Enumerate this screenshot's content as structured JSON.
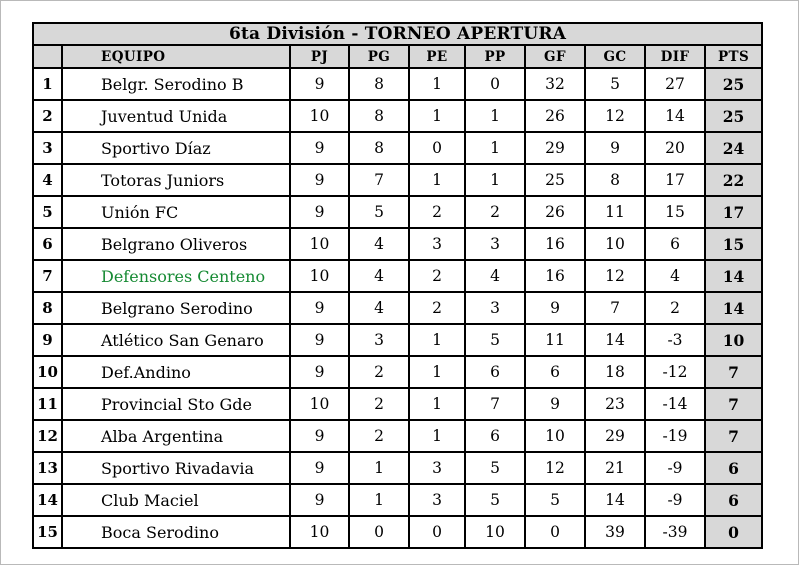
{
  "title": "6ta División - TORNEO APERTURA",
  "colors": {
    "table_gray": "#d8d8d8",
    "highlight_green": "#168a33",
    "border_black": "#000000",
    "page_border": "#b9b9b9"
  },
  "columns": [
    "",
    "EQUIPO",
    "PJ",
    "PG",
    "PE",
    "PP",
    "GF",
    "GC",
    "DIF",
    "PTS"
  ],
  "rows": [
    {
      "pos": "1",
      "team": "Belgr. Serodino B",
      "pj": "9",
      "pg": "8",
      "pe": "1",
      "pp": "0",
      "gf": "32",
      "gc": "5",
      "dif": "27",
      "pts": "25",
      "highlight": false
    },
    {
      "pos": "2",
      "team": "Juventud Unida",
      "pj": "10",
      "pg": "8",
      "pe": "1",
      "pp": "1",
      "gf": "26",
      "gc": "12",
      "dif": "14",
      "pts": "25",
      "highlight": false
    },
    {
      "pos": "3",
      "team": "Sportivo Díaz",
      "pj": "9",
      "pg": "8",
      "pe": "0",
      "pp": "1",
      "gf": "29",
      "gc": "9",
      "dif": "20",
      "pts": "24",
      "highlight": false
    },
    {
      "pos": "4",
      "team": "Totoras Juniors",
      "pj": "9",
      "pg": "7",
      "pe": "1",
      "pp": "1",
      "gf": "25",
      "gc": "8",
      "dif": "17",
      "pts": "22",
      "highlight": false
    },
    {
      "pos": "5",
      "team": "Unión FC",
      "pj": "9",
      "pg": "5",
      "pe": "2",
      "pp": "2",
      "gf": "26",
      "gc": "11",
      "dif": "15",
      "pts": "17",
      "highlight": false
    },
    {
      "pos": "6",
      "team": "Belgrano Oliveros",
      "pj": "10",
      "pg": "4",
      "pe": "3",
      "pp": "3",
      "gf": "16",
      "gc": "10",
      "dif": "6",
      "pts": "15",
      "highlight": false
    },
    {
      "pos": "7",
      "team": "Defensores Centeno",
      "pj": "10",
      "pg": "4",
      "pe": "2",
      "pp": "4",
      "gf": "16",
      "gc": "12",
      "dif": "4",
      "pts": "14",
      "highlight": true
    },
    {
      "pos": "8",
      "team": "Belgrano Serodino",
      "pj": "9",
      "pg": "4",
      "pe": "2",
      "pp": "3",
      "gf": "9",
      "gc": "7",
      "dif": "2",
      "pts": "14",
      "highlight": false
    },
    {
      "pos": "9",
      "team": "Atlético San Genaro",
      "pj": "9",
      "pg": "3",
      "pe": "1",
      "pp": "5",
      "gf": "11",
      "gc": "14",
      "dif": "-3",
      "pts": "10",
      "highlight": false
    },
    {
      "pos": "10",
      "team": "Def.Andino",
      "pj": "9",
      "pg": "2",
      "pe": "1",
      "pp": "6",
      "gf": "6",
      "gc": "18",
      "dif": "-12",
      "pts": "7",
      "highlight": false
    },
    {
      "pos": "11",
      "team": "Provincial Sto Gde",
      "pj": "10",
      "pg": "2",
      "pe": "1",
      "pp": "7",
      "gf": "9",
      "gc": "23",
      "dif": "-14",
      "pts": "7",
      "highlight": false
    },
    {
      "pos": "12",
      "team": "Alba Argentina",
      "pj": "9",
      "pg": "2",
      "pe": "1",
      "pp": "6",
      "gf": "10",
      "gc": "29",
      "dif": "-19",
      "pts": "7",
      "highlight": false
    },
    {
      "pos": "13",
      "team": "Sportivo Rivadavia",
      "pj": "9",
      "pg": "1",
      "pe": "3",
      "pp": "5",
      "gf": "12",
      "gc": "21",
      "dif": "-9",
      "pts": "6",
      "highlight": false
    },
    {
      "pos": "14",
      "team": "Club Maciel",
      "pj": "9",
      "pg": "1",
      "pe": "3",
      "pp": "5",
      "gf": "5",
      "gc": "14",
      "dif": "-9",
      "pts": "6",
      "highlight": false
    },
    {
      "pos": "15",
      "team": "Boca Serodino",
      "pj": "10",
      "pg": "0",
      "pe": "0",
      "pp": "10",
      "gf": "0",
      "gc": "39",
      "dif": "-39",
      "pts": "0",
      "highlight": false
    }
  ]
}
